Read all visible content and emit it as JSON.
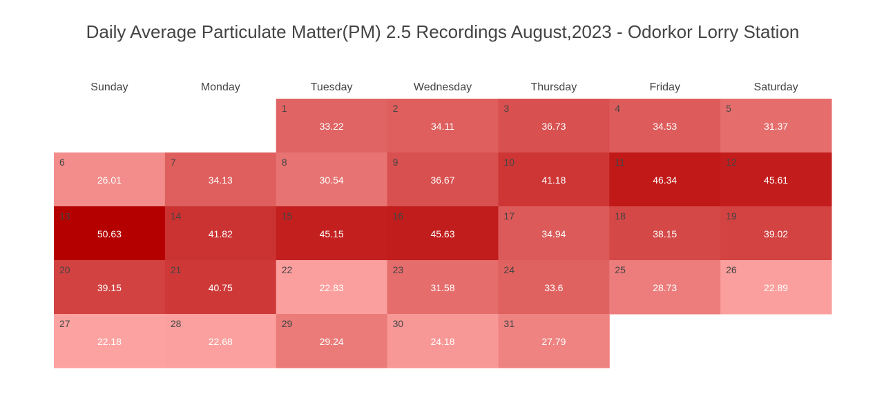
{
  "chart_data": {
    "type": "heatmap",
    "title": "Daily Average Particulate Matter(PM) 2.5 Recordings August,2023 - Odorkor Lorry Station",
    "weekdays": [
      "Sunday",
      "Monday",
      "Tuesday",
      "Wednesday",
      "Thursday",
      "Friday",
      "Saturday"
    ],
    "month_start_weekday": 2,
    "days": [
      1,
      2,
      3,
      4,
      5,
      6,
      7,
      8,
      9,
      10,
      11,
      12,
      13,
      14,
      15,
      16,
      17,
      18,
      19,
      20,
      21,
      22,
      23,
      24,
      25,
      26,
      27,
      28,
      29,
      30,
      31
    ],
    "values": [
      33.22,
      34.11,
      36.73,
      34.53,
      31.37,
      26.01,
      34.13,
      30.54,
      36.67,
      41.18,
      46.34,
      45.61,
      50.63,
      41.82,
      45.15,
      45.63,
      34.94,
      38.15,
      39.02,
      39.15,
      40.75,
      22.83,
      31.58,
      33.6,
      28.73,
      22.89,
      22.18,
      22.68,
      29.24,
      24.18,
      27.79
    ],
    "color_scale": {
      "low_color": "#fca3a1",
      "high_color": "#b50000"
    }
  }
}
